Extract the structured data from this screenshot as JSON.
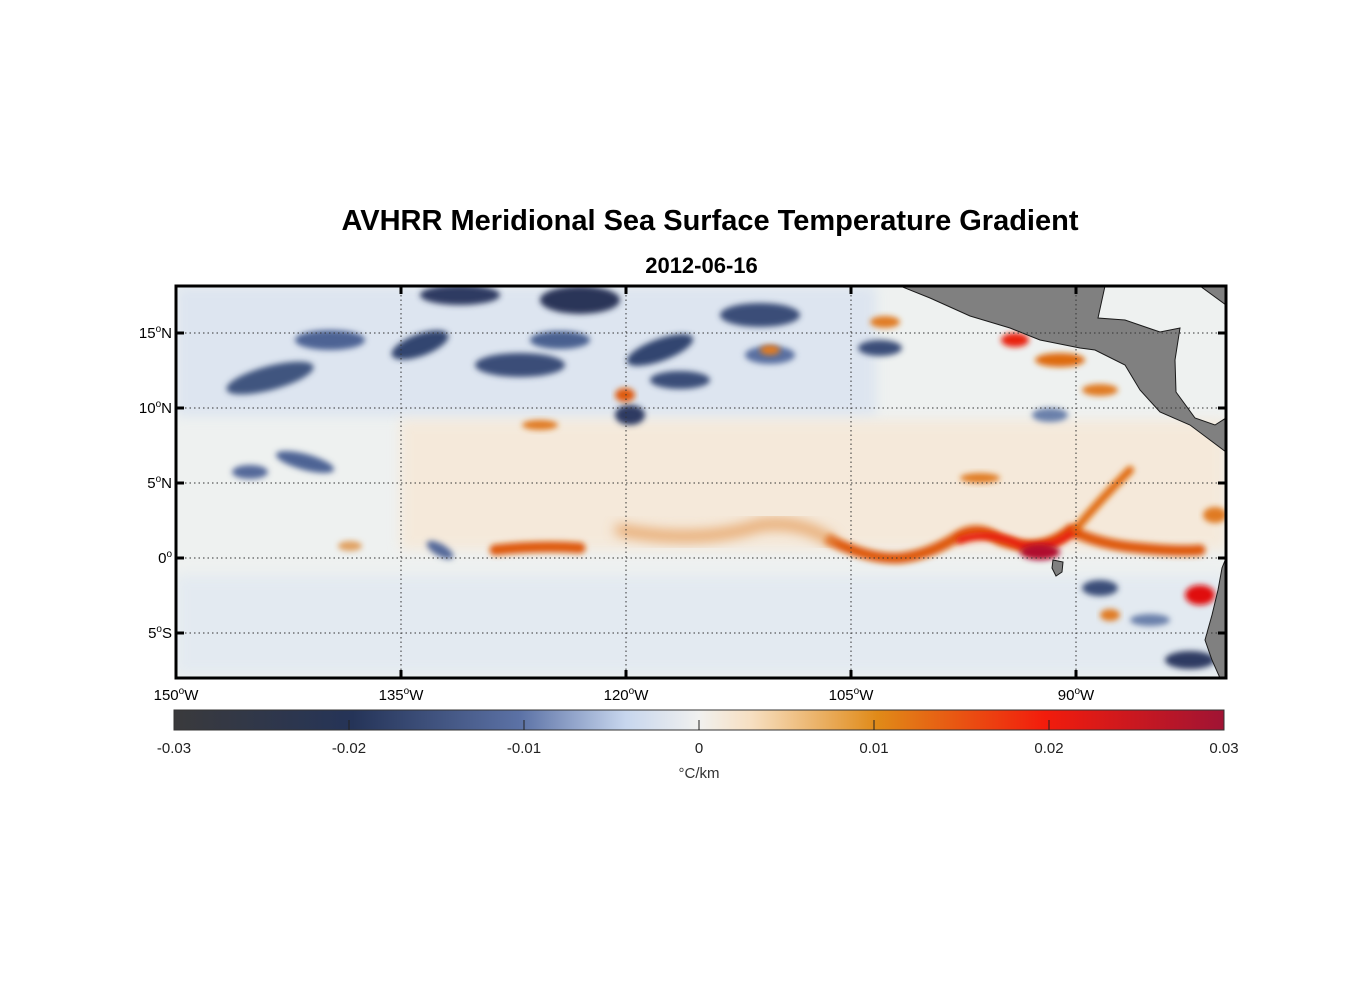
{
  "title": "AVHRR Meridional Sea Surface Temperature Gradient",
  "date": "2012-06-16",
  "lat_labels": [
    {
      "text": "15",
      "hemi": "N",
      "value": 15
    },
    {
      "text": "10",
      "hemi": "N",
      "value": 10
    },
    {
      "text": "5",
      "hemi": "N",
      "value": 5
    },
    {
      "text": "0",
      "hemi": "",
      "value": 0
    },
    {
      "text": "5",
      "hemi": "S",
      "value": -5
    }
  ],
  "lon_labels": [
    {
      "text": "150",
      "hemi": "W",
      "value": -150
    },
    {
      "text": "135",
      "hemi": "W",
      "value": -135
    },
    {
      "text": "120",
      "hemi": "W",
      "value": -120
    },
    {
      "text": "105",
      "hemi": "W",
      "value": -105
    },
    {
      "text": "90",
      "hemi": "W",
      "value": -90
    }
  ],
  "colorbar": {
    "ticks": [
      "-0.03",
      "-0.02",
      "-0.01",
      "0",
      "0.01",
      "0.02",
      "0.03"
    ],
    "units": "°C/km",
    "range": [
      -0.03,
      0.03
    ]
  },
  "colors": {
    "land": "#808080",
    "strong_negative": "#2b3a5e",
    "negative": "#7f98c2",
    "neutral": "#eef0ef",
    "positive": "#e07a20",
    "strong_positive": "#e01010",
    "extreme_positive": "#b0102e"
  }
}
